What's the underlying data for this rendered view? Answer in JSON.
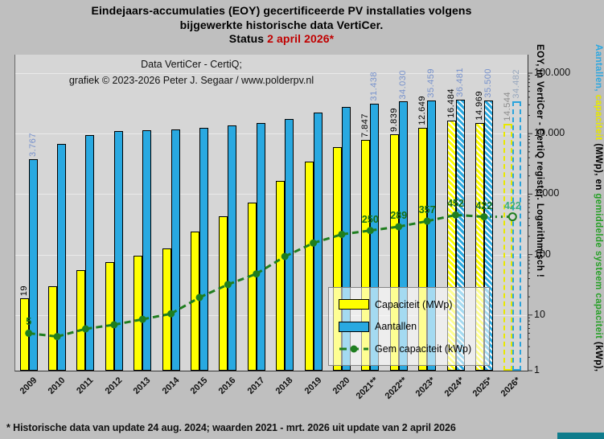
{
  "title": {
    "line1": "Eindejaars-accumulaties (EOY) gecertificeerde PV installaties volgens",
    "line2": "bijgewerkte historische data VertiCer.",
    "status_prefix": "Status ",
    "status_date": "2 april  2026*"
  },
  "attribution": {
    "line1": "Data VertiCer - CertiQ;",
    "line2": "grafiek © 2023-2026 Peter J. Segaar / www.polderpv.nl"
  },
  "footnote": "* Historische data van update 24 aug. 2024; waarden 2021 - mrt. 2026 uit update van 2 april 2026",
  "y_axis": {
    "ticks": [
      "100.000",
      "10.000",
      "1.000",
      "100",
      "10",
      "1"
    ],
    "title": {
      "part_aantallen": "Aantallen, ",
      "part_capaciteit": "capaciteit",
      "part_mwp": " (MWp), en ",
      "part_gem": "gemiddelde systeem capaciteit",
      "part_kwp": " (kWp),",
      "line2": "EOY, in VertiCer - CertiQ register. Logarithmisch !"
    }
  },
  "legend": {
    "items": [
      {
        "label": "Capaciteit (MWp)",
        "swatch": "yellow-bar"
      },
      {
        "label": "Aantallen",
        "swatch": "blue-bar"
      },
      {
        "label": "Gem capaciteit (kWp)",
        "swatch": "green-dash-dot"
      }
    ]
  },
  "chart_data": {
    "type": "bar",
    "subtype": "grouped-bars-plus-line",
    "y_scale": "log10",
    "ylim": [
      1,
      100000
    ],
    "grid": "horizontal-decades",
    "legend_position": "inside-bottom-right",
    "categories": [
      "2009",
      "2010",
      "2011",
      "2012",
      "2013",
      "2014",
      "2015",
      "2016",
      "2017",
      "2018",
      "2019",
      "2020",
      "2021**",
      "2022**",
      "2023*",
      "2024*",
      "2025*",
      "2026*"
    ],
    "bar_fill_styles": [
      "solid",
      "solid",
      "solid",
      "solid",
      "solid",
      "solid",
      "solid",
      "solid",
      "solid",
      "solid",
      "solid",
      "solid",
      "solid",
      "solid",
      "solid",
      "hatched",
      "hatched",
      "dashed"
    ],
    "series": [
      {
        "name": "Capaciteit (MWp)",
        "kind": "bar",
        "color": "#ffff00",
        "label_color": "#000000",
        "label_color_last": "#8c8c8c",
        "values": [
          19,
          30,
          55,
          75,
          95,
          125,
          240,
          430,
          730,
          1650,
          3450,
          5950,
          7847,
          9839,
          12649,
          16484,
          14969,
          14544
        ],
        "labels": [
          "19",
          null,
          null,
          null,
          null,
          null,
          null,
          null,
          null,
          null,
          null,
          null,
          "7.847",
          "9.839",
          "12.649",
          "16.484",
          "14.969",
          "14.544"
        ]
      },
      {
        "name": "Aantallen",
        "kind": "bar",
        "color": "#29a9e1",
        "label_color": "#7691cc",
        "label_color_last": "#97a7bd",
        "values": [
          3767,
          6800,
          9400,
          10900,
          11200,
          11900,
          12300,
          13500,
          15200,
          17700,
          22200,
          27600,
          31438,
          34030,
          35459,
          36481,
          35500,
          34482
        ],
        "labels": [
          "3.767",
          null,
          null,
          null,
          null,
          null,
          null,
          null,
          null,
          null,
          null,
          null,
          "31.438",
          "34.030",
          "35.459",
          "36.481",
          "35.500",
          "34.482"
        ]
      },
      {
        "name": "Gem capaciteit (kWp)",
        "kind": "line",
        "color": "#1f7e1f",
        "label_color": "#156f15",
        "label_color_last": "#3fae7c",
        "values": [
          5,
          4.4,
          5.9,
          6.9,
          8.5,
          10.5,
          19.5,
          32,
          48,
          93,
          155,
          216,
          250,
          289,
          357,
          452,
          422,
          422
        ],
        "labels": [
          "5",
          null,
          null,
          null,
          null,
          null,
          null,
          null,
          null,
          null,
          null,
          null,
          "250",
          "289",
          "357",
          "452",
          "422",
          "422"
        ]
      }
    ]
  }
}
